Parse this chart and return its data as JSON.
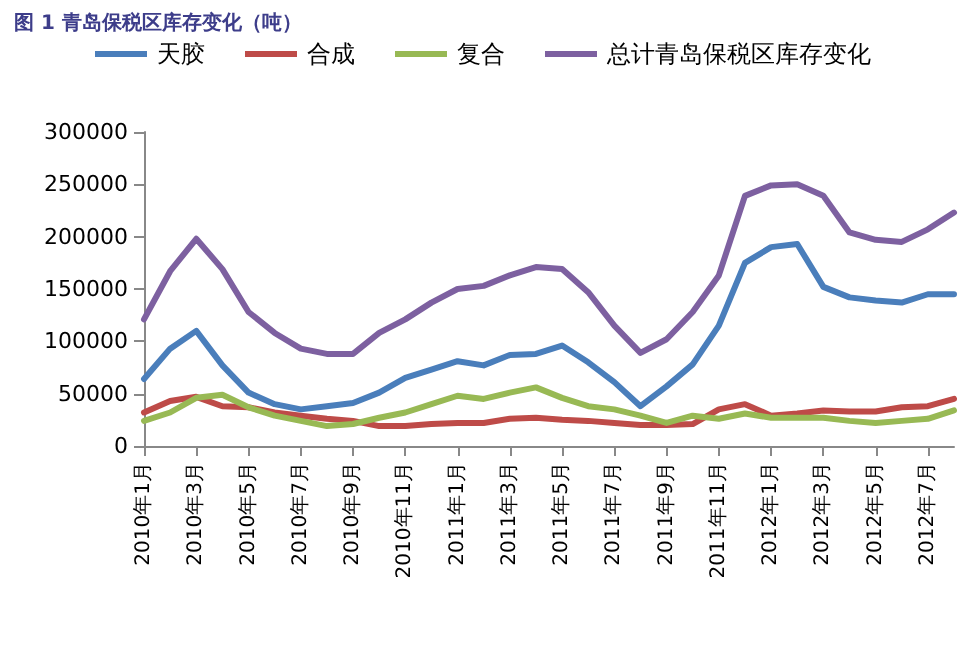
{
  "chart_data": {
    "type": "line",
    "title": "图 1 青岛保税区库存变化（吨）",
    "categories": [
      "2010年1月",
      null,
      "2010年3月",
      null,
      "2010年5月",
      null,
      "2010年7月",
      null,
      "2010年9月",
      null,
      "2010年11月",
      null,
      "2011年1月",
      null,
      "2011年3月",
      null,
      "2011年5月",
      null,
      "2011年7月",
      null,
      "2011年9月",
      null,
      "2011年11月",
      null,
      "2012年1月",
      null,
      "2012年3月",
      null,
      "2012年5月",
      null,
      "2012年7月",
      null
    ],
    "series": [
      {
        "name": "天胶",
        "color": "#4a7ebb",
        "values": [
          64000,
          93000,
          110000,
          77000,
          51000,
          40000,
          35000,
          38000,
          41000,
          51000,
          65000,
          73000,
          81000,
          77000,
          87000,
          88000,
          96000,
          80000,
          61000,
          38000,
          57000,
          78000,
          115000,
          175000,
          190000,
          193000,
          152000,
          142000,
          139000,
          137000,
          145000,
          145000
        ]
      },
      {
        "name": "合成",
        "color": "#be4b48",
        "values": [
          32000,
          43000,
          47000,
          38000,
          37000,
          32000,
          29000,
          26000,
          24000,
          19000,
          19000,
          21000,
          22000,
          22000,
          26000,
          27000,
          25000,
          24000,
          22000,
          20000,
          20000,
          21000,
          35000,
          40000,
          29000,
          31000,
          34000,
          33000,
          33000,
          37000,
          38000,
          45000
        ]
      },
      {
        "name": "复合",
        "color": "#98b954",
        "values": [
          24000,
          32000,
          46000,
          49000,
          37000,
          29000,
          24000,
          19000,
          21000,
          27000,
          32000,
          40000,
          48000,
          45000,
          51000,
          56000,
          46000,
          38000,
          35000,
          29000,
          22000,
          29000,
          26000,
          31000,
          27000,
          27000,
          27000,
          24000,
          22000,
          24000,
          26000,
          34000
        ]
      },
      {
        "name": "总计青岛保税区库存变化",
        "color": "#7d60a0",
        "values": [
          121000,
          167000,
          198000,
          169000,
          128000,
          108000,
          93000,
          88000,
          88000,
          108000,
          121000,
          137000,
          150000,
          153000,
          163000,
          171000,
          169000,
          147000,
          115000,
          89000,
          102000,
          128000,
          163000,
          239000,
          249000,
          250000,
          239000,
          204000,
          197000,
          195000,
          207000,
          223000
        ]
      }
    ],
    "ylim": [
      0,
      300000
    ],
    "yticks": [
      0,
      50000,
      100000,
      150000,
      200000,
      250000,
      300000
    ],
    "legend": "top",
    "grid": false,
    "marker": "none",
    "line_style": "solid"
  }
}
